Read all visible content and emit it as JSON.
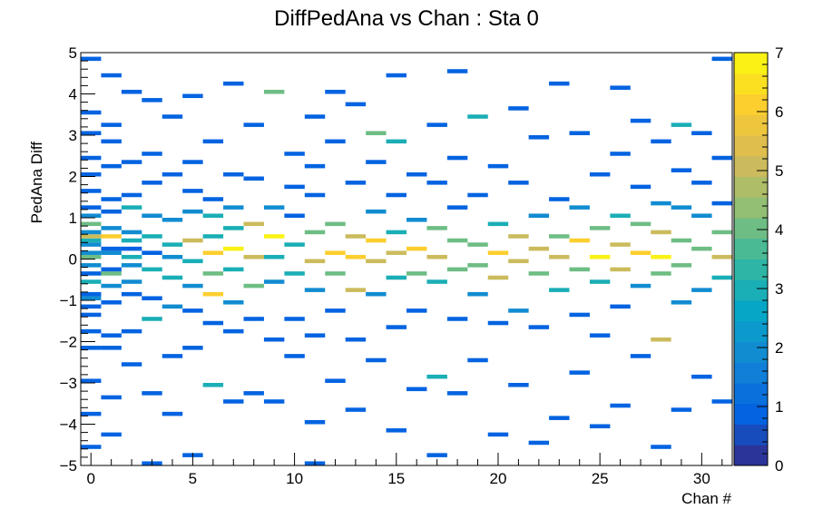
{
  "chart_data": {
    "type": "heatmap",
    "title": "DiffPedAna vs Chan : Sta 0",
    "xlabel": "Chan #",
    "ylabel": "PedAna Diff",
    "xlim": [
      -0.5,
      31.5
    ],
    "ylim": [
      -5,
      5
    ],
    "zlim": [
      0,
      7
    ],
    "x_ticks": [
      "0",
      "5",
      "10",
      "15",
      "20",
      "25",
      "30"
    ],
    "y_ticks": [
      "−5",
      "−4",
      "−3",
      "−2",
      "−1",
      "0",
      "1",
      "2",
      "3",
      "4",
      "5"
    ],
    "z_ticks": [
      "0",
      "1",
      "2",
      "3",
      "4",
      "5",
      "6",
      "7"
    ],
    "x_bin_width": 1,
    "y_bin_width": 0.1,
    "grid": false,
    "colorbar": "right",
    "palette": [
      "#352a87",
      "#0363e1",
      "#1485d4",
      "#06a7c6",
      "#38b99e",
      "#92bf73",
      "#d9ba56",
      "#fcce2e",
      "#f9fb0e"
    ],
    "bins": [
      [
        0,
        -4.55,
        1
      ],
      [
        0,
        -3.75,
        1
      ],
      [
        0,
        -2.95,
        1
      ],
      [
        0,
        -2.15,
        1
      ],
      [
        0,
        -1.75,
        1
      ],
      [
        0,
        -1.35,
        1
      ],
      [
        0,
        -1.15,
        1
      ],
      [
        0,
        -0.95,
        2
      ],
      [
        0,
        -0.85,
        1
      ],
      [
        0,
        -0.55,
        3
      ],
      [
        0,
        -0.35,
        1
      ],
      [
        0,
        -0.15,
        2
      ],
      [
        0,
        0.05,
        4
      ],
      [
        0,
        0.15,
        2
      ],
      [
        0,
        0.35,
        2
      ],
      [
        0,
        0.45,
        3
      ],
      [
        0,
        0.55,
        5
      ],
      [
        0,
        0.65,
        2
      ],
      [
        0,
        0.85,
        4
      ],
      [
        0,
        1.05,
        2
      ],
      [
        0,
        1.25,
        1
      ],
      [
        0,
        1.65,
        1
      ],
      [
        0,
        2.05,
        1
      ],
      [
        0,
        2.45,
        1
      ],
      [
        0,
        3.05,
        1
      ],
      [
        0,
        3.55,
        1
      ],
      [
        0,
        4.85,
        1
      ],
      [
        1,
        -4.25,
        1
      ],
      [
        1,
        -3.35,
        1
      ],
      [
        1,
        -2.15,
        1
      ],
      [
        1,
        -1.85,
        1
      ],
      [
        1,
        -1.05,
        1
      ],
      [
        1,
        -0.65,
        2
      ],
      [
        1,
        -0.35,
        4
      ],
      [
        1,
        -0.25,
        1
      ],
      [
        1,
        0.15,
        2
      ],
      [
        1,
        0.25,
        1
      ],
      [
        1,
        0.55,
        6
      ],
      [
        1,
        0.75,
        2
      ],
      [
        1,
        1.15,
        1
      ],
      [
        1,
        1.45,
        1
      ],
      [
        1,
        2.25,
        1
      ],
      [
        1,
        2.85,
        1
      ],
      [
        1,
        3.25,
        1
      ],
      [
        1,
        4.45,
        1
      ],
      [
        2,
        -2.55,
        1
      ],
      [
        2,
        -1.75,
        1
      ],
      [
        2,
        -0.85,
        1
      ],
      [
        2,
        -0.55,
        2
      ],
      [
        2,
        -0.15,
        2
      ],
      [
        2,
        0.05,
        3
      ],
      [
        2,
        0.25,
        1
      ],
      [
        2,
        0.45,
        3
      ],
      [
        2,
        0.65,
        2
      ],
      [
        2,
        1.25,
        3
      ],
      [
        2,
        1.55,
        1
      ],
      [
        2,
        2.35,
        1
      ],
      [
        2,
        4.05,
        1
      ],
      [
        3,
        -4.95,
        1
      ],
      [
        3,
        -3.25,
        1
      ],
      [
        3,
        -1.45,
        3
      ],
      [
        3,
        -0.95,
        1
      ],
      [
        3,
        -0.25,
        3
      ],
      [
        3,
        0.15,
        1
      ],
      [
        3,
        0.55,
        3
      ],
      [
        3,
        1.05,
        2
      ],
      [
        3,
        1.85,
        1
      ],
      [
        3,
        2.55,
        1
      ],
      [
        3,
        3.85,
        1
      ],
      [
        4,
        -3.75,
        1
      ],
      [
        4,
        -2.35,
        1
      ],
      [
        4,
        -1.15,
        2
      ],
      [
        4,
        -0.45,
        3
      ],
      [
        4,
        0.05,
        2
      ],
      [
        4,
        0.35,
        3
      ],
      [
        4,
        0.95,
        2
      ],
      [
        4,
        2.05,
        1
      ],
      [
        4,
        3.45,
        1
      ],
      [
        5,
        -4.75,
        1
      ],
      [
        5,
        -2.15,
        1
      ],
      [
        5,
        -1.25,
        1
      ],
      [
        5,
        -0.65,
        2
      ],
      [
        5,
        -0.05,
        3
      ],
      [
        5,
        0.45,
        5
      ],
      [
        5,
        1.15,
        2
      ],
      [
        5,
        1.65,
        1
      ],
      [
        5,
        2.35,
        1
      ],
      [
        5,
        3.95,
        1
      ],
      [
        6,
        -3.05,
        3
      ],
      [
        6,
        -1.55,
        1
      ],
      [
        6,
        -0.85,
        6
      ],
      [
        6,
        -0.35,
        4
      ],
      [
        6,
        0.15,
        6
      ],
      [
        6,
        0.55,
        3
      ],
      [
        6,
        1.05,
        3
      ],
      [
        6,
        1.45,
        1
      ],
      [
        6,
        2.85,
        1
      ],
      [
        7,
        -3.45,
        1
      ],
      [
        7,
        -1.75,
        1
      ],
      [
        7,
        -1.05,
        2
      ],
      [
        7,
        -0.25,
        3
      ],
      [
        7,
        0.25,
        8
      ],
      [
        7,
        0.75,
        3
      ],
      [
        7,
        1.25,
        2
      ],
      [
        7,
        2.05,
        1
      ],
      [
        7,
        4.25,
        1
      ],
      [
        8,
        -3.25,
        1
      ],
      [
        8,
        -1.45,
        1
      ],
      [
        8,
        -0.65,
        4
      ],
      [
        8,
        0.05,
        5
      ],
      [
        8,
        0.85,
        5
      ],
      [
        8,
        1.95,
        1
      ],
      [
        8,
        3.25,
        1
      ],
      [
        9,
        -3.45,
        1
      ],
      [
        9,
        -1.95,
        1
      ],
      [
        9,
        -0.55,
        2
      ],
      [
        9,
        0.05,
        3
      ],
      [
        9,
        0.55,
        7
      ],
      [
        9,
        1.25,
        2
      ],
      [
        9,
        4.05,
        4
      ],
      [
        10,
        -2.35,
        1
      ],
      [
        10,
        -1.45,
        1
      ],
      [
        10,
        -0.35,
        3
      ],
      [
        10,
        0.35,
        3
      ],
      [
        10,
        1.05,
        1
      ],
      [
        10,
        1.75,
        1
      ],
      [
        10,
        2.55,
        1
      ],
      [
        11,
        -4.95,
        1
      ],
      [
        11,
        -3.95,
        1
      ],
      [
        11,
        -1.85,
        1
      ],
      [
        11,
        -0.75,
        2
      ],
      [
        11,
        -0.05,
        5
      ],
      [
        11,
        0.65,
        4
      ],
      [
        11,
        1.55,
        1
      ],
      [
        11,
        2.25,
        1
      ],
      [
        11,
        3.45,
        1
      ],
      [
        12,
        -2.95,
        1
      ],
      [
        12,
        -1.25,
        1
      ],
      [
        12,
        -0.35,
        4
      ],
      [
        12,
        0.15,
        6
      ],
      [
        12,
        0.85,
        4
      ],
      [
        12,
        2.85,
        1
      ],
      [
        12,
        4.05,
        1
      ],
      [
        13,
        -3.65,
        1
      ],
      [
        13,
        -1.95,
        1
      ],
      [
        13,
        -0.75,
        5
      ],
      [
        13,
        0.05,
        6
      ],
      [
        13,
        0.55,
        5
      ],
      [
        13,
        1.85,
        1
      ],
      [
        13,
        3.75,
        1
      ],
      [
        14,
        -2.45,
        1
      ],
      [
        14,
        -0.85,
        2
      ],
      [
        14,
        -0.05,
        5
      ],
      [
        14,
        0.45,
        6
      ],
      [
        14,
        1.15,
        2
      ],
      [
        14,
        2.35,
        1
      ],
      [
        14,
        3.05,
        4
      ],
      [
        15,
        -4.15,
        1
      ],
      [
        15,
        -1.65,
        1
      ],
      [
        15,
        -0.45,
        3
      ],
      [
        15,
        0.15,
        5
      ],
      [
        15,
        0.65,
        3
      ],
      [
        15,
        1.55,
        1
      ],
      [
        15,
        2.85,
        3
      ],
      [
        15,
        4.45,
        1
      ],
      [
        16,
        -3.15,
        1
      ],
      [
        16,
        -1.25,
        1
      ],
      [
        16,
        -0.35,
        4
      ],
      [
        16,
        0.25,
        6
      ],
      [
        16,
        0.95,
        2
      ],
      [
        16,
        2.05,
        1
      ],
      [
        17,
        -4.75,
        1
      ],
      [
        17,
        -2.85,
        3
      ],
      [
        17,
        -0.55,
        3
      ],
      [
        17,
        0.05,
        5
      ],
      [
        17,
        0.75,
        4
      ],
      [
        17,
        1.85,
        1
      ],
      [
        17,
        3.25,
        1
      ],
      [
        18,
        -3.25,
        1
      ],
      [
        18,
        -1.45,
        1
      ],
      [
        18,
        -0.25,
        4
      ],
      [
        18,
        0.45,
        4
      ],
      [
        18,
        1.25,
        1
      ],
      [
        18,
        2.45,
        1
      ],
      [
        18,
        4.55,
        1
      ],
      [
        19,
        -2.45,
        1
      ],
      [
        19,
        -0.85,
        2
      ],
      [
        19,
        -0.15,
        4
      ],
      [
        19,
        0.35,
        4
      ],
      [
        19,
        1.55,
        1
      ],
      [
        19,
        3.45,
        3
      ],
      [
        20,
        -4.25,
        1
      ],
      [
        20,
        -1.55,
        1
      ],
      [
        20,
        -0.45,
        5
      ],
      [
        20,
        0.15,
        6
      ],
      [
        20,
        0.85,
        3
      ],
      [
        20,
        2.25,
        1
      ],
      [
        21,
        -3.05,
        1
      ],
      [
        21,
        -1.25,
        2
      ],
      [
        21,
        -0.05,
        5
      ],
      [
        21,
        0.55,
        5
      ],
      [
        21,
        1.85,
        1
      ],
      [
        21,
        3.65,
        1
      ],
      [
        22,
        -4.45,
        1
      ],
      [
        22,
        -1.65,
        1
      ],
      [
        22,
        -0.35,
        4
      ],
      [
        22,
        0.25,
        5
      ],
      [
        22,
        1.05,
        2
      ],
      [
        22,
        2.95,
        1
      ],
      [
        23,
        -3.85,
        1
      ],
      [
        23,
        -0.75,
        3
      ],
      [
        23,
        0.05,
        5
      ],
      [
        23,
        0.55,
        4
      ],
      [
        23,
        1.45,
        1
      ],
      [
        23,
        4.25,
        1
      ],
      [
        24,
        -2.75,
        1
      ],
      [
        24,
        -1.35,
        1
      ],
      [
        24,
        -0.25,
        4
      ],
      [
        24,
        0.45,
        6
      ],
      [
        24,
        1.25,
        2
      ],
      [
        24,
        3.05,
        1
      ],
      [
        25,
        -4.05,
        1
      ],
      [
        25,
        -1.85,
        1
      ],
      [
        25,
        -0.55,
        3
      ],
      [
        25,
        0.05,
        7
      ],
      [
        25,
        0.75,
        4
      ],
      [
        25,
        2.05,
        1
      ],
      [
        26,
        -3.55,
        1
      ],
      [
        26,
        -1.15,
        1
      ],
      [
        26,
        -0.25,
        5
      ],
      [
        26,
        0.35,
        5
      ],
      [
        26,
        1.05,
        3
      ],
      [
        26,
        2.55,
        1
      ],
      [
        26,
        4.15,
        1
      ],
      [
        27,
        -2.35,
        1
      ],
      [
        27,
        -0.65,
        2
      ],
      [
        27,
        0.15,
        6
      ],
      [
        27,
        0.85,
        4
      ],
      [
        27,
        1.75,
        1
      ],
      [
        27,
        3.35,
        1
      ],
      [
        28,
        -4.55,
        1
      ],
      [
        28,
        -1.95,
        5
      ],
      [
        28,
        -0.35,
        4
      ],
      [
        28,
        0.05,
        7
      ],
      [
        28,
        0.65,
        5
      ],
      [
        28,
        1.35,
        2
      ],
      [
        28,
        2.85,
        1
      ],
      [
        29,
        -3.65,
        1
      ],
      [
        29,
        -1.05,
        2
      ],
      [
        29,
        -0.15,
        4
      ],
      [
        29,
        0.45,
        4
      ],
      [
        29,
        1.25,
        2
      ],
      [
        29,
        2.15,
        1
      ],
      [
        29,
        3.25,
        3
      ],
      [
        30,
        -2.85,
        1
      ],
      [
        30,
        -0.75,
        2
      ],
      [
        30,
        0.25,
        4
      ],
      [
        30,
        1.05,
        2
      ],
      [
        30,
        1.85,
        1
      ],
      [
        30,
        3.05,
        1
      ],
      [
        31,
        -3.45,
        1
      ],
      [
        31,
        -0.45,
        3
      ],
      [
        31,
        0.05,
        5
      ],
      [
        31,
        0.65,
        4
      ],
      [
        31,
        1.35,
        1
      ],
      [
        31,
        2.45,
        1
      ],
      [
        31,
        4.85,
        1
      ]
    ]
  }
}
